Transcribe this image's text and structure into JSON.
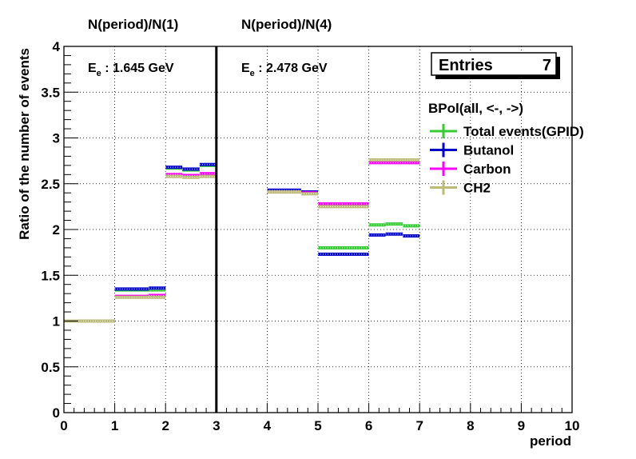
{
  "chart_data": {
    "type": "step-histogram",
    "ylabel": "Ratio of the number of events",
    "xlabel": "period",
    "xlim": [
      0,
      10
    ],
    "ylim": [
      0,
      4
    ],
    "x_ticks": [
      "0",
      "1",
      "2",
      "3",
      "4",
      "5",
      "6",
      "7",
      "8",
      "9",
      "10"
    ],
    "y_ticks": [
      "0",
      "0.5",
      "1",
      "1.5",
      "2",
      "2.5",
      "3",
      "3.5",
      "4"
    ],
    "grid": true,
    "divider_x": 3,
    "top_labels": [
      "N(period)/N(1)",
      "N(period)/N(4)"
    ],
    "energy_annotations": [
      {
        "main": "E",
        "sub": "e",
        "value": " : 1.645 GeV"
      },
      {
        "main": "E",
        "sub": "e",
        "value": " : 2.478 GeV"
      }
    ],
    "stats_box": {
      "label": "Entries",
      "value": "7"
    },
    "legend_title": "BPol(all, <-, ->)",
    "series": [
      {
        "name": "Total events(GPID)",
        "color": "#33cc33",
        "segments": [
          [
            0,
            1,
            1.0
          ],
          [
            1,
            2,
            1.34
          ],
          [
            2,
            2.33,
            2.67
          ],
          [
            2.33,
            2.67,
            2.65
          ],
          [
            2.67,
            3,
            2.7
          ],
          [
            4,
            4.67,
            2.42
          ],
          [
            4.67,
            5,
            2.4
          ],
          [
            5,
            6,
            1.8
          ],
          [
            6,
            6.33,
            2.05
          ],
          [
            6.33,
            6.67,
            2.06
          ],
          [
            6.67,
            7,
            2.04
          ]
        ]
      },
      {
        "name": "Butanol",
        "color": "#0000cc",
        "segments": [
          [
            0,
            1,
            1.0
          ],
          [
            1,
            1.67,
            1.35
          ],
          [
            1.67,
            2,
            1.36
          ],
          [
            2,
            2.33,
            2.68
          ],
          [
            2.33,
            2.67,
            2.66
          ],
          [
            2.67,
            3,
            2.71
          ],
          [
            4,
            4.67,
            2.43
          ],
          [
            4.67,
            5,
            2.41
          ],
          [
            5,
            6,
            1.73
          ],
          [
            6,
            6.33,
            1.94
          ],
          [
            6.33,
            6.67,
            1.95
          ],
          [
            6.67,
            7,
            1.93
          ]
        ]
      },
      {
        "name": "Carbon",
        "color": "#ff00ff",
        "segments": [
          [
            0,
            1,
            1.0
          ],
          [
            1,
            1.67,
            1.27
          ],
          [
            1.67,
            2,
            1.28
          ],
          [
            2,
            2.33,
            2.6
          ],
          [
            2.33,
            2.67,
            2.59
          ],
          [
            2.67,
            3,
            2.61
          ],
          [
            4,
            4.67,
            2.41
          ],
          [
            4.67,
            5,
            2.4
          ],
          [
            5,
            6,
            2.28
          ],
          [
            6,
            7,
            2.73
          ]
        ]
      },
      {
        "name": "CH2",
        "color": "#bbbb77",
        "segments": [
          [
            0,
            1,
            1.0
          ],
          [
            1,
            2,
            1.26
          ],
          [
            2,
            2.33,
            2.58
          ],
          [
            2.33,
            2.67,
            2.57
          ],
          [
            2.67,
            3,
            2.58
          ],
          [
            4,
            4.67,
            2.41
          ],
          [
            4.67,
            5,
            2.39
          ],
          [
            5,
            6,
            2.25
          ],
          [
            6,
            7,
            2.76
          ]
        ]
      }
    ]
  }
}
